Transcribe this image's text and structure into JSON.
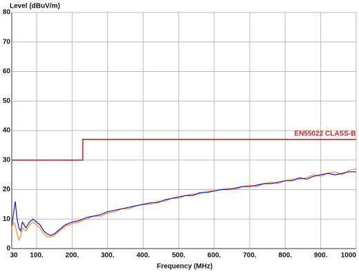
{
  "chart_data": {
    "type": "line",
    "title": "Level (dBuV/m)",
    "x_label": "Frequency (MHz)",
    "xlim": [
      30,
      1000
    ],
    "ylim": [
      0,
      80
    ],
    "xticks": [
      30,
      {
        "value": 100,
        "label": "100."
      },
      {
        "value": 200,
        "label": "200."
      },
      {
        "value": 300,
        "label": "300."
      },
      {
        "value": 400,
        "label": "400."
      },
      {
        "value": 500,
        "label": "500."
      },
      {
        "value": 600,
        "label": "600."
      },
      {
        "value": 700,
        "label": "700."
      },
      {
        "value": 800,
        "label": "800."
      },
      {
        "value": 900,
        "label": "900."
      },
      1000
    ],
    "yticks": [
      0,
      10,
      20,
      30,
      40,
      50,
      60,
      70,
      80
    ],
    "grid": true,
    "series": [
      {
        "color": "#ff8c1a",
        "x": [
          30,
          35,
          40,
          45,
          50,
          55,
          60,
          70,
          80,
          90,
          100,
          110,
          120,
          130,
          140,
          150,
          160,
          180,
          200,
          220,
          240,
          260,
          280,
          300,
          320,
          340,
          360,
          380,
          400,
          420,
          440,
          460,
          480,
          500,
          520,
          540,
          560,
          580,
          600,
          620,
          640,
          660,
          680,
          700,
          720,
          740,
          760,
          780,
          800,
          820,
          840,
          860,
          880,
          900,
          920,
          940,
          960,
          980,
          1000
        ],
        "values": [
          7,
          9,
          8,
          5,
          3,
          4,
          7,
          6,
          8,
          9,
          8,
          7,
          5,
          4,
          4,
          4.5,
          5.5,
          7.5,
          8.5,
          9,
          10,
          11,
          11,
          12,
          12.5,
          13.5,
          13.5,
          14.5,
          15,
          15,
          16,
          16,
          17,
          17,
          18,
          18.5,
          18.5,
          19.5,
          19.5,
          20,
          20.5,
          20,
          21,
          21.5,
          21,
          22,
          22.5,
          22,
          23,
          23.5,
          23.5,
          24,
          25,
          24.5,
          25.5,
          26,
          25,
          26.5,
          27
        ]
      },
      {
        "color": "#1515c8",
        "x": [
          30,
          35,
          40,
          45,
          50,
          55,
          60,
          70,
          80,
          90,
          100,
          110,
          120,
          130,
          140,
          150,
          160,
          180,
          200,
          220,
          240,
          260,
          280,
          300,
          320,
          340,
          360,
          380,
          400,
          420,
          440,
          460,
          480,
          500,
          520,
          540,
          560,
          580,
          600,
          620,
          640,
          660,
          680,
          700,
          720,
          740,
          760,
          780,
          800,
          820,
          840,
          860,
          880,
          900,
          920,
          940,
          960,
          980,
          1000
        ],
        "values": [
          8,
          12,
          16,
          10,
          7,
          6,
          9,
          7,
          9,
          10,
          9,
          8,
          6,
          5,
          4.5,
          5,
          6,
          8,
          9,
          9.5,
          10.5,
          11,
          11.5,
          12.5,
          13,
          13.5,
          14,
          14.5,
          15,
          15.5,
          15.5,
          16.5,
          17,
          17.5,
          18,
          18,
          19,
          19,
          19.5,
          20,
          20,
          20.5,
          21,
          21,
          21.5,
          22,
          22,
          22.5,
          23,
          23,
          24,
          23.5,
          24.5,
          25,
          25.5,
          25,
          25.5,
          26,
          26
        ]
      },
      {
        "name": "EN55022 CLASS-B",
        "color": "#cc2222",
        "x": [
          30,
          230,
          230,
          1000
        ],
        "values": [
          30,
          30,
          37,
          37
        ]
      }
    ]
  }
}
